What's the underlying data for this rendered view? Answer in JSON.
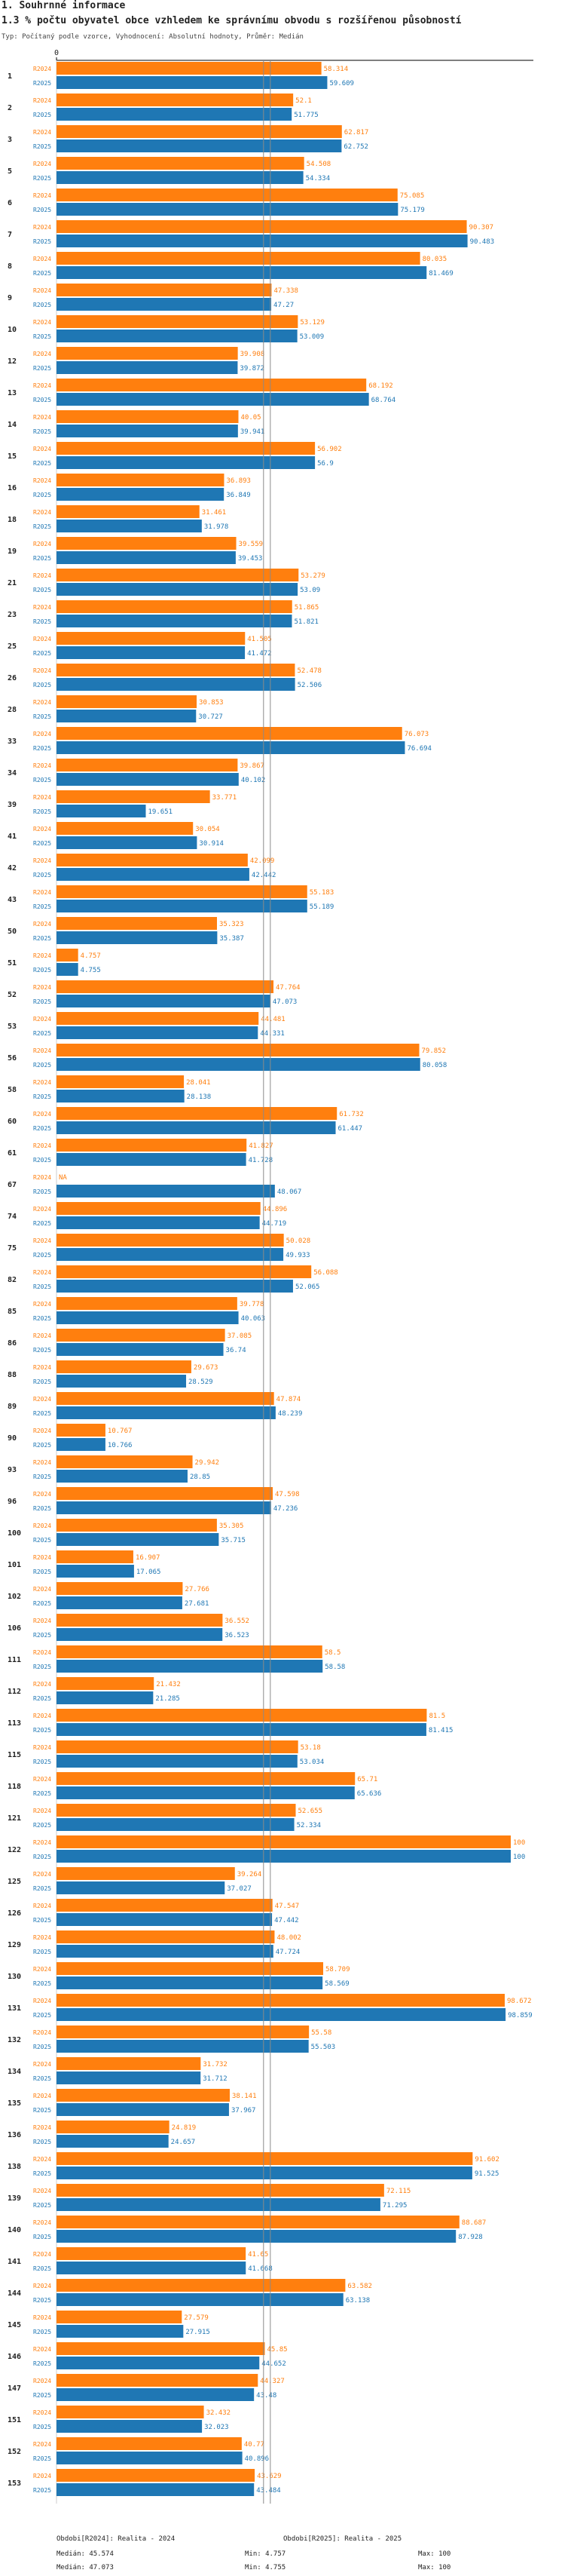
{
  "header": {
    "section_title": "1. Souhrnné informace",
    "chart_title": "1.3 % počtu obyvatel obce vzhledem ke správnímu obvodu s rozšířenou působností",
    "subtitle": "Typ: Počítaný podle vzorce, Vyhodnocení: Absolutní hodnoty, Průměr: Medián"
  },
  "colors": {
    "s2024": "#ff7f0e",
    "s2025": "#1f77b4",
    "median_line": "#8a8a8a",
    "grid": "#cccccc",
    "axis": "#000000"
  },
  "chart_data": {
    "type": "bar",
    "orientation": "horizontal",
    "xlim": [
      0,
      100
    ],
    "x_tick_labels": [
      "0"
    ],
    "series": [
      {
        "name": "R2024",
        "label": "R2024",
        "values": [
          58.314,
          52.1,
          62.817,
          54.508,
          75.085,
          90.307,
          80.035,
          47.338,
          53.129,
          39.908,
          68.192,
          40.05,
          56.902,
          36.893,
          31.461,
          39.559,
          53.279,
          51.865,
          41.505,
          52.478,
          30.853,
          76.073,
          39.867,
          33.771,
          30.054,
          42.099,
          55.183,
          35.323,
          4.757,
          47.764,
          44.481,
          79.852,
          28.041,
          61.732,
          41.827,
          null,
          44.896,
          50.028,
          56.088,
          39.778,
          37.085,
          29.673,
          47.874,
          10.767,
          29.942,
          47.598,
          35.305,
          16.907,
          27.766,
          36.552,
          58.5,
          21.432,
          81.5,
          53.18,
          65.71,
          52.655,
          100,
          39.264,
          47.547,
          48.002,
          58.709,
          98.672,
          55.58,
          31.732,
          38.141,
          24.819,
          91.602,
          72.115,
          88.687,
          41.65,
          63.582,
          27.579,
          45.85,
          44.327,
          32.432,
          40.77,
          43.629
        ]
      },
      {
        "name": "R2025",
        "label": "R2025",
        "values": [
          59.609,
          51.775,
          62.752,
          54.334,
          75.179,
          90.483,
          81.469,
          47.27,
          53.009,
          39.872,
          68.764,
          39.941,
          56.9,
          36.849,
          31.978,
          39.453,
          53.09,
          51.821,
          41.472,
          52.506,
          30.727,
          76.694,
          40.102,
          19.651,
          30.914,
          42.442,
          55.189,
          35.387,
          4.755,
          47.073,
          44.331,
          80.058,
          28.138,
          61.447,
          41.728,
          48.067,
          44.719,
          49.933,
          52.065,
          40.063,
          36.74,
          28.529,
          48.239,
          10.766,
          28.85,
          47.236,
          35.715,
          17.065,
          27.681,
          36.523,
          58.58,
          21.285,
          81.415,
          53.034,
          65.636,
          52.334,
          100,
          37.027,
          47.442,
          47.724,
          58.569,
          98.859,
          55.503,
          31.712,
          37.967,
          24.657,
          91.525,
          71.295,
          87.928,
          41.668,
          63.138,
          27.915,
          44.652,
          43.48,
          32.023,
          40.896,
          43.484
        ]
      }
    ],
    "categories": [
      "1",
      "2",
      "3",
      "5",
      "6",
      "7",
      "8",
      "9",
      "10",
      "12",
      "13",
      "14",
      "15",
      "16",
      "18",
      "19",
      "21",
      "23",
      "25",
      "26",
      "28",
      "33",
      "34",
      "39",
      "41",
      "42",
      "43",
      "50",
      "51",
      "52",
      "53",
      "56",
      "58",
      "60",
      "61",
      "67",
      "74",
      "75",
      "82",
      "85",
      "86",
      "88",
      "89",
      "90",
      "93",
      "96",
      "100",
      "101",
      "102",
      "106",
      "111",
      "112",
      "113",
      "115",
      "118",
      "121",
      "122",
      "125",
      "126",
      "129",
      "130",
      "131",
      "132",
      "134",
      "135",
      "136",
      "138",
      "139",
      "140",
      "141",
      "144",
      "145",
      "146",
      "147",
      "151",
      "152",
      "153"
    ],
    "missing_label": "NA",
    "reference_lines": {
      "median_2024": 45.574,
      "median_2025": 47.073
    }
  },
  "legend": {
    "col1_head": "Obdobi[R2024]: Realita - 2024",
    "col2_head": "Obdobi[R2025]: Realita - 2025",
    "r2024": {
      "median": "Medián: 45.574",
      "min": "Min: 4.757",
      "max": "Max: 100"
    },
    "r2025": {
      "median": "Medián: 47.073",
      "min": "Min: 4.755",
      "max": "Max: 100"
    }
  }
}
